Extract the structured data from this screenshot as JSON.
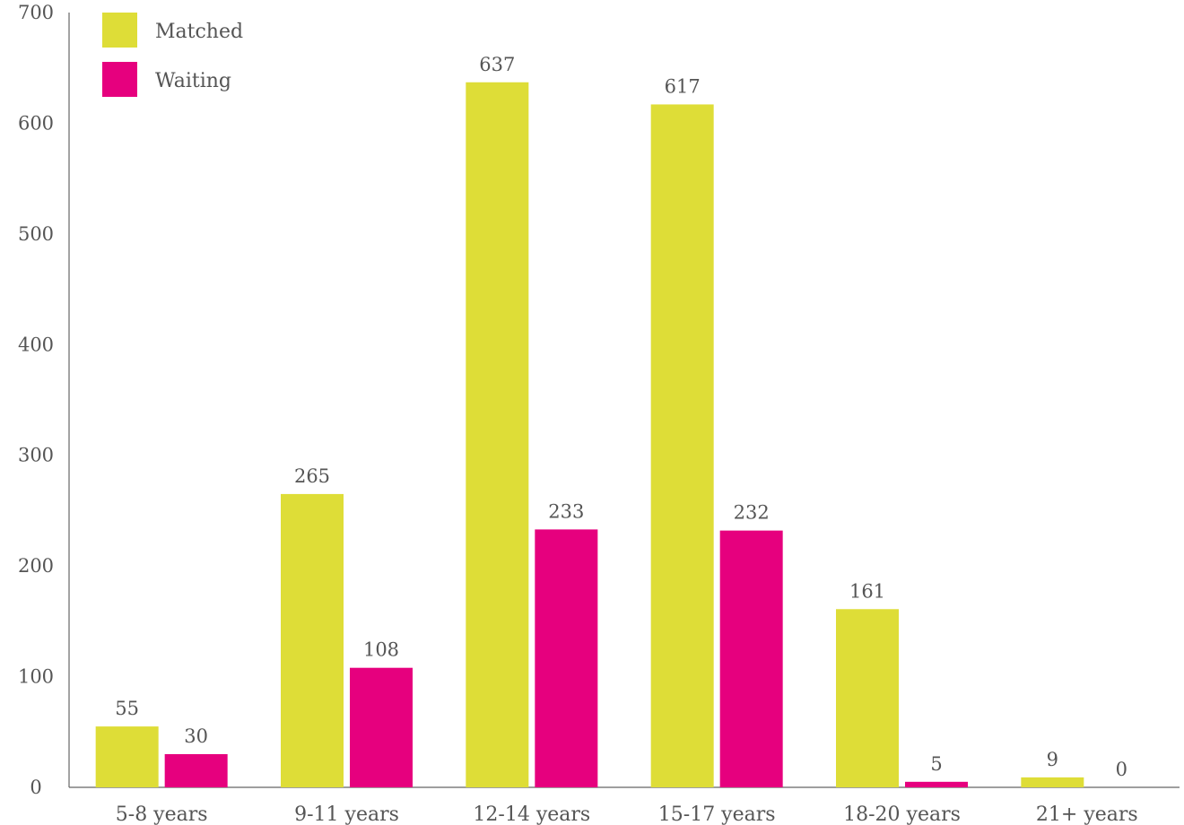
{
  "chart_data": {
    "type": "bar",
    "categories": [
      "5-8 years",
      "9-11 years",
      "12-14 years",
      "15-17 years",
      "18-20 years",
      "21+ years"
    ],
    "series": [
      {
        "name": "Matched",
        "values": [
          55,
          265,
          637,
          617,
          161,
          9
        ],
        "color": "#dedd37"
      },
      {
        "name": "Waiting",
        "values": [
          30,
          108,
          233,
          232,
          5,
          0
        ],
        "color": "#e6007e"
      }
    ],
    "y_ticks": [
      "0",
      "100",
      "200",
      "300",
      "400",
      "500",
      "600",
      "700"
    ],
    "ylim": [
      0,
      700
    ],
    "grid": false,
    "legend_position": "top-left",
    "title": "",
    "xlabel": "",
    "ylabel": ""
  }
}
